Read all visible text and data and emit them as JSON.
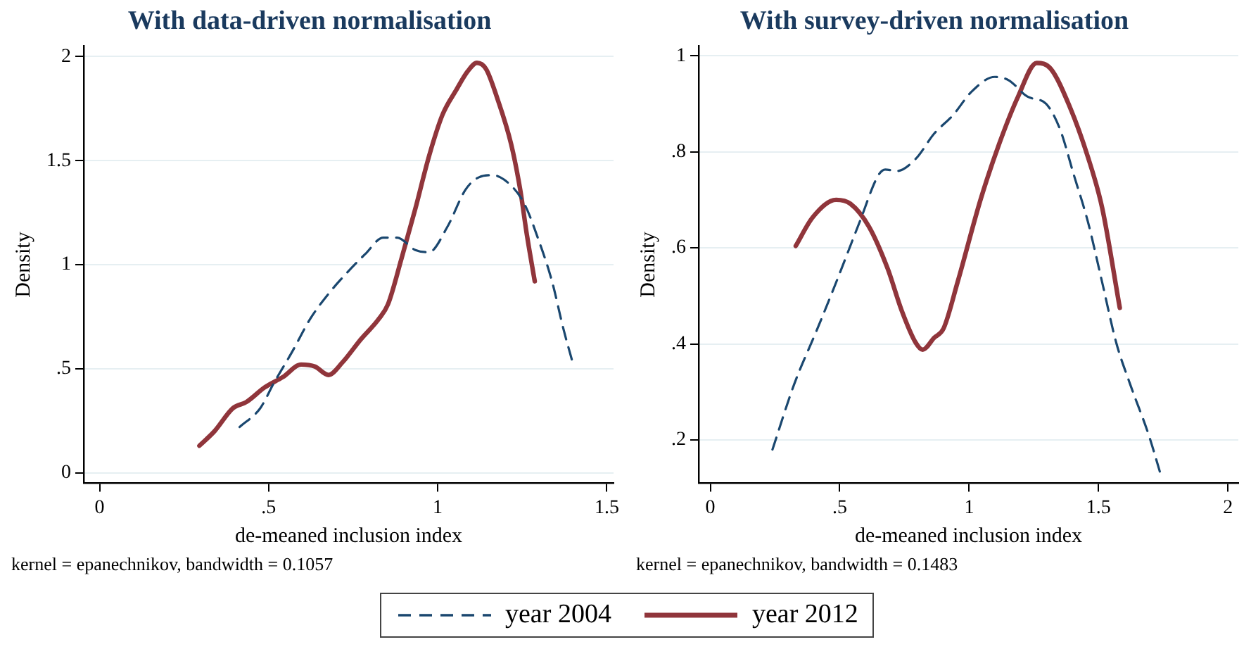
{
  "chart_data": [
    {
      "type": "line",
      "title": "With data-driven normalisation",
      "xlabel": "de-meaned inclusion index",
      "ylabel": "Density",
      "annotations": [
        "kernel = epanechnikov, bandwidth = 0.1057"
      ],
      "xlim": [
        -0.047,
        1.52
      ],
      "ylim": [
        -0.05,
        2.05
      ],
      "xticks": [
        0,
        {
          "value": 0.5,
          "label": ".5"
        },
        1,
        1.5
      ],
      "yticks": [
        0,
        {
          "value": 0.5,
          "label": ".5"
        },
        1,
        1.5,
        2
      ],
      "grid": "y",
      "legend": "bottom",
      "marker": "none",
      "series": [
        {
          "name": "year 2004",
          "color": "#1a476f",
          "line_style": "dashed",
          "x": [
            0.414,
            0.475,
            0.515,
            0.569,
            0.623,
            0.677,
            0.731,
            0.785,
            0.839,
            0.88,
            0.934,
            0.974,
            1.028,
            1.082,
            1.122,
            1.163,
            1.217,
            1.257,
            1.298,
            1.338,
            1.372,
            1.399
          ],
          "values": [
            0.22,
            0.31,
            0.43,
            0.58,
            0.74,
            0.86,
            0.96,
            1.05,
            1.13,
            1.13,
            1.07,
            1.06,
            1.18,
            1.36,
            1.42,
            1.43,
            1.38,
            1.29,
            1.12,
            0.92,
            0.69,
            0.53
          ]
        },
        {
          "name": "year 2012",
          "color": "#90353b",
          "line_style": "solid",
          "x": [
            0.295,
            0.34,
            0.394,
            0.434,
            0.488,
            0.542,
            0.596,
            0.637,
            0.677,
            0.718,
            0.772,
            0.826,
            0.853,
            0.893,
            0.934,
            0.974,
            1.014,
            1.055,
            1.089,
            1.116,
            1.143,
            1.176,
            1.217,
            1.244,
            1.264,
            1.287
          ],
          "values": [
            0.13,
            0.2,
            0.31,
            0.34,
            0.41,
            0.46,
            0.52,
            0.51,
            0.47,
            0.53,
            0.64,
            0.74,
            0.81,
            1.03,
            1.27,
            1.52,
            1.72,
            1.84,
            1.93,
            1.97,
            1.94,
            1.8,
            1.58,
            1.36,
            1.14,
            0.92
          ]
        }
      ]
    },
    {
      "type": "line",
      "title": "With survey-driven normalisation",
      "xlabel": "de-meaned inclusion index",
      "ylabel": "Density",
      "annotations": [
        "kernel = epanechnikov, bandwidth = 0.1483"
      ],
      "xlim": [
        -0.045,
        2.04
      ],
      "ylim": [
        0.11,
        1.02
      ],
      "xticks": [
        0,
        {
          "value": 0.5,
          "label": ".5"
        },
        1,
        1.5,
        2
      ],
      "yticks": [
        {
          "value": 0.2,
          "label": ".2"
        },
        {
          "value": 0.4,
          "label": ".4"
        },
        {
          "value": 0.6,
          "label": ".6"
        },
        {
          "value": 0.8,
          "label": ".8"
        },
        1
      ],
      "grid": "y",
      "legend": "bottom",
      "marker": "none",
      "series": [
        {
          "name": "year 2004",
          "color": "#1a476f",
          "line_style": "dashed",
          "x": [
            0.24,
            0.324,
            0.414,
            0.486,
            0.577,
            0.649,
            0.676,
            0.721,
            0.793,
            0.865,
            0.937,
            1.009,
            1.099,
            1.153,
            1.225,
            1.297,
            1.351,
            1.405,
            1.459,
            1.514,
            1.568,
            1.622,
            1.694,
            1.739
          ],
          "values": [
            0.18,
            0.316,
            0.432,
            0.528,
            0.654,
            0.751,
            0.763,
            0.76,
            0.785,
            0.838,
            0.876,
            0.925,
            0.956,
            0.949,
            0.915,
            0.9,
            0.847,
            0.751,
            0.654,
            0.528,
            0.403,
            0.316,
            0.21,
            0.13
          ]
        },
        {
          "name": "year 2012",
          "color": "#90353b",
          "line_style": "solid",
          "x": [
            0.33,
            0.396,
            0.486,
            0.541,
            0.613,
            0.685,
            0.739,
            0.793,
            0.82,
            0.865,
            0.901,
            0.955,
            1.045,
            1.117,
            1.189,
            1.261,
            1.315,
            1.387,
            1.459,
            1.514,
            1.582
          ],
          "values": [
            0.604,
            0.664,
            0.7,
            0.692,
            0.644,
            0.557,
            0.47,
            0.403,
            0.388,
            0.413,
            0.432,
            0.528,
            0.702,
            0.818,
            0.915,
            0.985,
            0.973,
            0.896,
            0.789,
            0.683,
            0.475
          ]
        }
      ]
    }
  ]
}
